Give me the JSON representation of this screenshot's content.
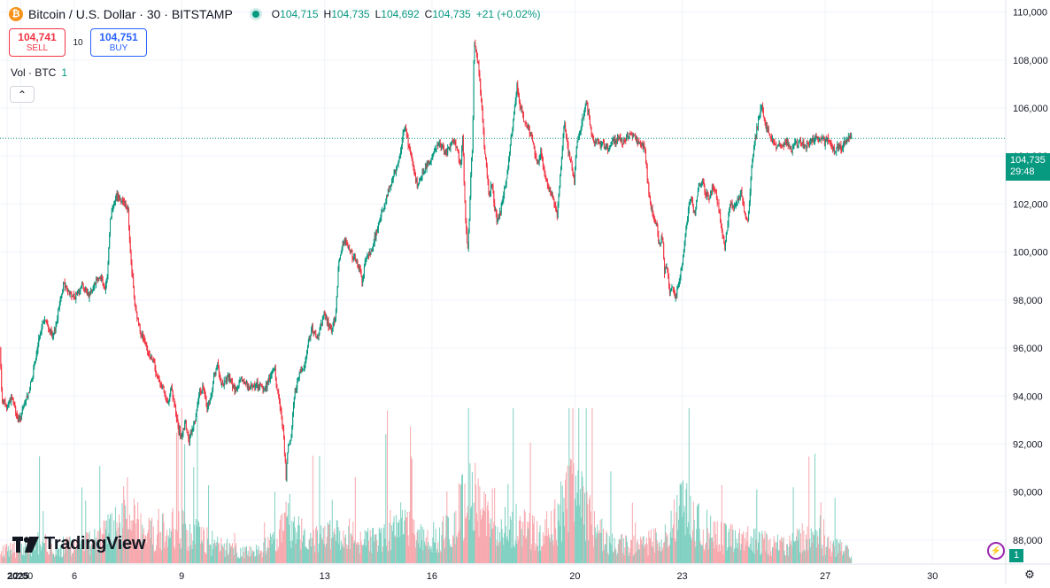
{
  "legend": {
    "logo_glyph": "₿",
    "title": "Bitcoin / U.S. Dollar · 30 · BITSTAMP",
    "o_label": "O",
    "o_value": "104,715",
    "h_label": "H",
    "h_value": "104,735",
    "l_label": "L",
    "l_value": "104,692",
    "c_label": "C",
    "c_value": "104,735",
    "change": "+21 (+0.02%)"
  },
  "trade": {
    "sell_price": "104,741",
    "sell_label": "SELL",
    "spread": "10",
    "buy_price": "104,751",
    "buy_label": "BUY"
  },
  "volume_legend": {
    "label": "Vol · BTC",
    "value": "1"
  },
  "collapse_glyph": "⌃",
  "branding": {
    "name": "TradingView"
  },
  "last_price": {
    "price": "104,735",
    "countdown": "29:48"
  },
  "volume_tag": "1",
  "alert_glyph": "⚡",
  "settings_glyph": "⚙",
  "colors": {
    "up": "#089981",
    "down": "#f23645",
    "up_volume": "#7fd0c1",
    "down_volume": "#f7a8ad",
    "grid": "#f0f3fa"
  },
  "chart_data": {
    "type": "candlestick",
    "title": "Bitcoin / U.S. Dollar · 30 · BITSTAMP",
    "interval": "30",
    "ylim": [
      87000,
      110500
    ],
    "y_ticks": [
      88000,
      90000,
      92000,
      94000,
      96000,
      98000,
      100000,
      102000,
      104000,
      106000,
      108000,
      110000
    ],
    "y_tick_labels": [
      "88,000",
      "90,000",
      "92,000",
      "94,000",
      "96,000",
      "98,000",
      "100,000",
      "102,000",
      "104,000",
      "106,000",
      "108,000",
      "110,000"
    ],
    "x_ticks": [
      {
        "label": "2025",
        "day": 4.0
      },
      {
        "label": "12:00",
        "day": 4.5
      },
      {
        "label": "6",
        "day": 6.0
      },
      {
        "label": "9",
        "day": 9.0
      },
      {
        "label": "13",
        "day": 13.0
      },
      {
        "label": "16",
        "day": 16.0
      },
      {
        "label": "20",
        "day": 20.0
      },
      {
        "label": "23",
        "day": 23.0
      },
      {
        "label": "27",
        "day": 27.0
      },
      {
        "label": "30",
        "day": 30.0
      }
    ],
    "xlim_days": [
      3.92,
      31.9
    ],
    "close_path": [
      [
        3.92,
        96000
      ],
      [
        3.97,
        94000
      ],
      [
        4.1,
        93500
      ],
      [
        4.25,
        94000
      ],
      [
        4.35,
        93400
      ],
      [
        4.45,
        92900
      ],
      [
        4.6,
        93600
      ],
      [
        4.75,
        94300
      ],
      [
        4.85,
        95000
      ],
      [
        4.95,
        95800
      ],
      [
        5.05,
        96700
      ],
      [
        5.15,
        97200
      ],
      [
        5.3,
        96800
      ],
      [
        5.4,
        96400
      ],
      [
        5.5,
        97100
      ],
      [
        5.6,
        98000
      ],
      [
        5.7,
        98700
      ],
      [
        5.85,
        98300
      ],
      [
        6.0,
        98100
      ],
      [
        6.1,
        98300
      ],
      [
        6.2,
        98700
      ],
      [
        6.4,
        98200
      ],
      [
        6.6,
        98800
      ],
      [
        6.75,
        99000
      ],
      [
        6.85,
        98400
      ],
      [
        6.92,
        98900
      ],
      [
        7.0,
        101300
      ],
      [
        7.1,
        102100
      ],
      [
        7.2,
        102400
      ],
      [
        7.3,
        102200
      ],
      [
        7.4,
        102100
      ],
      [
        7.5,
        101800
      ],
      [
        7.55,
        100200
      ],
      [
        7.62,
        99000
      ],
      [
        7.7,
        97600
      ],
      [
        7.85,
        96700
      ],
      [
        7.95,
        96300
      ],
      [
        8.05,
        95800
      ],
      [
        8.2,
        95500
      ],
      [
        8.3,
        94800
      ],
      [
        8.4,
        94600
      ],
      [
        8.5,
        94200
      ],
      [
        8.6,
        93600
      ],
      [
        8.7,
        94400
      ],
      [
        8.8,
        93600
      ],
      [
        8.9,
        92700
      ],
      [
        9.0,
        92200
      ],
      [
        9.1,
        92900
      ],
      [
        9.2,
        92100
      ],
      [
        9.3,
        92600
      ],
      [
        9.4,
        93200
      ],
      [
        9.5,
        94100
      ],
      [
        9.6,
        94400
      ],
      [
        9.7,
        93500
      ],
      [
        9.8,
        93800
      ],
      [
        9.9,
        94800
      ],
      [
        10.0,
        95300
      ],
      [
        10.1,
        94400
      ],
      [
        10.3,
        94800
      ],
      [
        10.5,
        94200
      ],
      [
        10.7,
        94700
      ],
      [
        10.9,
        94300
      ],
      [
        11.1,
        94500
      ],
      [
        11.3,
        94200
      ],
      [
        11.5,
        94900
      ],
      [
        11.6,
        95200
      ],
      [
        11.65,
        94500
      ],
      [
        11.75,
        93600
      ],
      [
        11.85,
        92500
      ],
      [
        11.92,
        90600
      ],
      [
        11.97,
        91800
      ],
      [
        12.05,
        92100
      ],
      [
        12.15,
        94000
      ],
      [
        12.3,
        95000
      ],
      [
        12.45,
        95300
      ],
      [
        12.55,
        96400
      ],
      [
        12.65,
        96800
      ],
      [
        12.8,
        96400
      ],
      [
        12.9,
        96900
      ],
      [
        13.0,
        97400
      ],
      [
        13.1,
        97000
      ],
      [
        13.2,
        96800
      ],
      [
        13.3,
        97300
      ],
      [
        13.4,
        99700
      ],
      [
        13.5,
        100300
      ],
      [
        13.6,
        100500
      ],
      [
        13.75,
        99900
      ],
      [
        13.9,
        99500
      ],
      [
        14.0,
        99300
      ],
      [
        14.05,
        98700
      ],
      [
        14.15,
        99800
      ],
      [
        14.3,
        100000
      ],
      [
        14.45,
        100900
      ],
      [
        14.6,
        101600
      ],
      [
        14.75,
        102400
      ],
      [
        14.9,
        103000
      ],
      [
        15.05,
        103700
      ],
      [
        15.15,
        104500
      ],
      [
        15.25,
        105400
      ],
      [
        15.32,
        104600
      ],
      [
        15.42,
        104100
      ],
      [
        15.52,
        103200
      ],
      [
        15.6,
        102800
      ],
      [
        15.7,
        103200
      ],
      [
        15.8,
        103500
      ],
      [
        15.9,
        103700
      ],
      [
        16.05,
        104100
      ],
      [
        16.2,
        104600
      ],
      [
        16.35,
        104100
      ],
      [
        16.5,
        104300
      ],
      [
        16.6,
        104700
      ],
      [
        16.7,
        104300
      ],
      [
        16.8,
        103500
      ],
      [
        16.86,
        105000
      ],
      [
        16.9,
        102800
      ],
      [
        16.95,
        101000
      ],
      [
        17.0,
        100100
      ],
      [
        17.05,
        101500
      ],
      [
        17.1,
        103800
      ],
      [
        17.14,
        104600
      ],
      [
        17.18,
        108900
      ],
      [
        17.25,
        108300
      ],
      [
        17.32,
        107500
      ],
      [
        17.4,
        106000
      ],
      [
        17.46,
        104500
      ],
      [
        17.52,
        103500
      ],
      [
        17.6,
        102400
      ],
      [
        17.68,
        103000
      ],
      [
        17.75,
        101800
      ],
      [
        17.82,
        101300
      ],
      [
        17.9,
        101600
      ],
      [
        17.98,
        102300
      ],
      [
        18.08,
        102900
      ],
      [
        18.2,
        104600
      ],
      [
        18.3,
        105800
      ],
      [
        18.38,
        107000
      ],
      [
        18.45,
        106200
      ],
      [
        18.55,
        105600
      ],
      [
        18.65,
        105300
      ],
      [
        18.75,
        105000
      ],
      [
        18.85,
        104400
      ],
      [
        18.95,
        103600
      ],
      [
        19.05,
        104200
      ],
      [
        19.15,
        103200
      ],
      [
        19.25,
        102700
      ],
      [
        19.35,
        102400
      ],
      [
        19.45,
        102000
      ],
      [
        19.5,
        101500
      ],
      [
        19.6,
        103300
      ],
      [
        19.7,
        105600
      ],
      [
        19.8,
        104300
      ],
      [
        19.9,
        103700
      ],
      [
        19.98,
        102900
      ],
      [
        20.05,
        104500
      ],
      [
        20.15,
        105100
      ],
      [
        20.25,
        105800
      ],
      [
        20.32,
        106300
      ],
      [
        20.42,
        105400
      ],
      [
        20.5,
        104700
      ],
      [
        20.62,
        104600
      ],
      [
        20.75,
        104500
      ],
      [
        20.9,
        104300
      ],
      [
        21.05,
        104600
      ],
      [
        21.2,
        104700
      ],
      [
        21.35,
        104600
      ],
      [
        21.5,
        104900
      ],
      [
        21.65,
        104800
      ],
      [
        21.8,
        104500
      ],
      [
        21.95,
        104300
      ],
      [
        22.02,
        103200
      ],
      [
        22.1,
        102100
      ],
      [
        22.2,
        101400
      ],
      [
        22.28,
        101200
      ],
      [
        22.35,
        100300
      ],
      [
        22.45,
        100600
      ],
      [
        22.5,
        99200
      ],
      [
        22.58,
        99400
      ],
      [
        22.65,
        98300
      ],
      [
        22.72,
        98600
      ],
      [
        22.82,
        98100
      ],
      [
        22.92,
        98800
      ],
      [
        23.02,
        99700
      ],
      [
        23.1,
        100900
      ],
      [
        23.18,
        101900
      ],
      [
        23.25,
        102200
      ],
      [
        23.35,
        101500
      ],
      [
        23.45,
        102600
      ],
      [
        23.55,
        103000
      ],
      [
        23.65,
        102500
      ],
      [
        23.75,
        102200
      ],
      [
        23.85,
        102700
      ],
      [
        23.95,
        102300
      ],
      [
        24.05,
        101600
      ],
      [
        24.12,
        100700
      ],
      [
        24.2,
        100300
      ],
      [
        24.28,
        101300
      ],
      [
        24.35,
        102100
      ],
      [
        24.45,
        101800
      ],
      [
        24.55,
        102200
      ],
      [
        24.65,
        102600
      ],
      [
        24.75,
        101500
      ],
      [
        24.85,
        101400
      ],
      [
        24.95,
        103800
      ],
      [
        25.05,
        104800
      ],
      [
        25.15,
        105700
      ],
      [
        25.22,
        106100
      ],
      [
        25.3,
        105400
      ],
      [
        25.4,
        105000
      ],
      [
        25.5,
        104700
      ],
      [
        25.6,
        104400
      ],
      [
        25.75,
        104400
      ],
      [
        25.9,
        104600
      ],
      [
        26.05,
        104200
      ],
      [
        26.15,
        104500
      ],
      [
        26.3,
        104600
      ],
      [
        26.45,
        104400
      ],
      [
        26.6,
        104600
      ],
      [
        26.75,
        104800
      ],
      [
        26.85,
        104600
      ],
      [
        26.93,
        104700
      ],
      [
        27.0,
        104500
      ],
      [
        27.05,
        104700
      ],
      [
        27.12,
        104500
      ],
      [
        27.25,
        104200
      ],
      [
        27.35,
        104400
      ],
      [
        27.45,
        104300
      ],
      [
        27.55,
        104600
      ],
      [
        27.65,
        104800
      ],
      [
        27.75,
        104700
      ]
    ],
    "volume_profile": [
      {
        "day": 4.0,
        "v": 20
      },
      {
        "day": 4.5,
        "v": 26
      },
      {
        "day": 5.0,
        "v": 34
      },
      {
        "day": 5.5,
        "v": 24
      },
      {
        "day": 6.0,
        "v": 30
      },
      {
        "day": 6.5,
        "v": 38
      },
      {
        "day": 7.0,
        "v": 52
      },
      {
        "day": 7.5,
        "v": 86
      },
      {
        "day": 8.0,
        "v": 42
      },
      {
        "day": 8.5,
        "v": 58
      },
      {
        "day": 9.0,
        "v": 56
      },
      {
        "day": 9.5,
        "v": 44
      },
      {
        "day": 10.0,
        "v": 28
      },
      {
        "day": 10.5,
        "v": 22
      },
      {
        "day": 11.0,
        "v": 18
      },
      {
        "day": 11.5,
        "v": 32
      },
      {
        "day": 12.0,
        "v": 70
      },
      {
        "day": 12.5,
        "v": 34
      },
      {
        "day": 13.0,
        "v": 40
      },
      {
        "day": 13.5,
        "v": 48
      },
      {
        "day": 14.0,
        "v": 38
      },
      {
        "day": 14.5,
        "v": 36
      },
      {
        "day": 15.0,
        "v": 64
      },
      {
        "day": 15.5,
        "v": 48
      },
      {
        "day": 16.0,
        "v": 42
      },
      {
        "day": 16.5,
        "v": 50
      },
      {
        "day": 17.0,
        "v": 110
      },
      {
        "day": 17.5,
        "v": 96
      },
      {
        "day": 18.0,
        "v": 56
      },
      {
        "day": 18.5,
        "v": 60
      },
      {
        "day": 19.0,
        "v": 42
      },
      {
        "day": 19.5,
        "v": 70
      },
      {
        "day": 20.0,
        "v": 120
      },
      {
        "day": 20.5,
        "v": 60
      },
      {
        "day": 21.0,
        "v": 34
      },
      {
        "day": 21.5,
        "v": 28
      },
      {
        "day": 22.0,
        "v": 32
      },
      {
        "day": 22.5,
        "v": 40
      },
      {
        "day": 23.0,
        "v": 86
      },
      {
        "day": 23.5,
        "v": 60
      },
      {
        "day": 24.0,
        "v": 42
      },
      {
        "day": 24.5,
        "v": 38
      },
      {
        "day": 25.0,
        "v": 36
      },
      {
        "day": 25.5,
        "v": 30
      },
      {
        "day": 26.0,
        "v": 28
      },
      {
        "day": 26.5,
        "v": 44
      },
      {
        "day": 27.0,
        "v": 30
      },
      {
        "day": 27.5,
        "v": 24
      },
      {
        "day": 27.75,
        "v": 12
      }
    ],
    "last_price": 104735
  }
}
